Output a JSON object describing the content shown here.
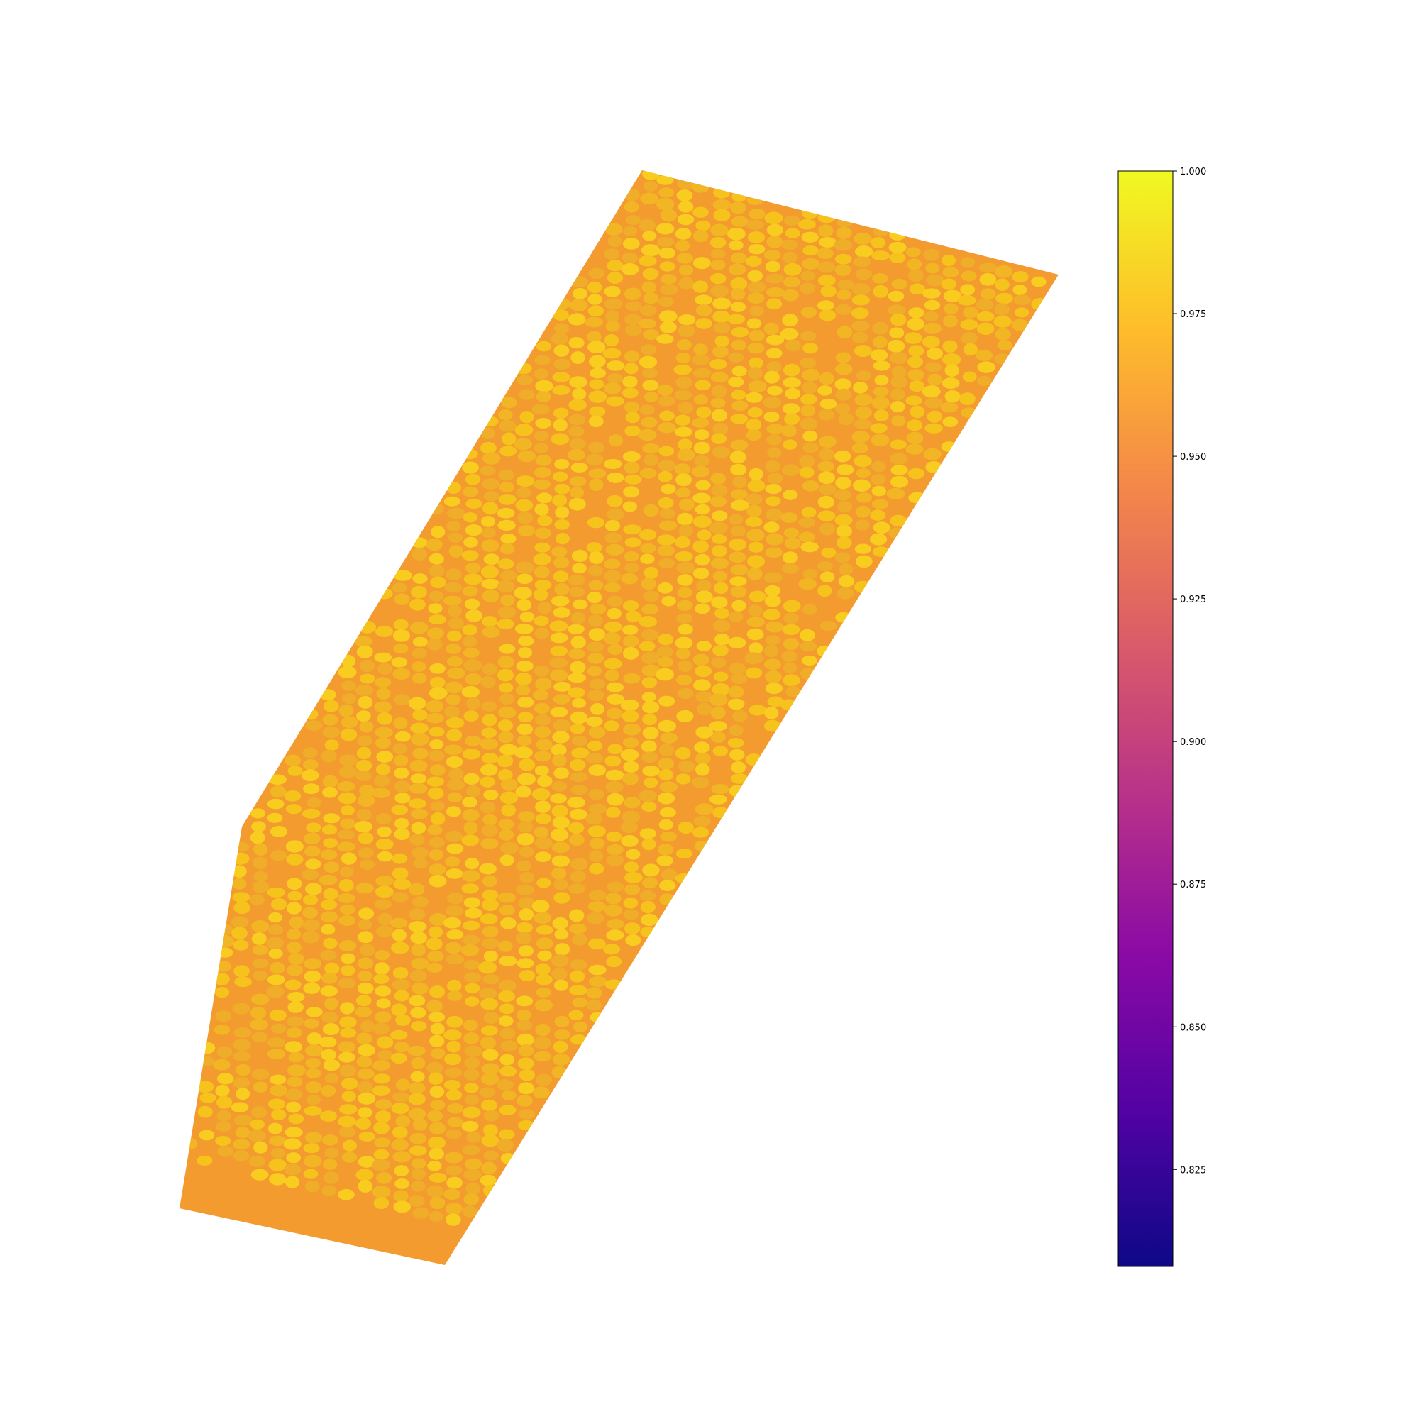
{
  "chart_data": {
    "type": "heatmap",
    "colormap": "plasma",
    "colormap_stops": [
      "#0d0887",
      "#5302a3",
      "#8b0aa5",
      "#b83289",
      "#db5c68",
      "#f48849",
      "#febd2a",
      "#f0f921"
    ],
    "background_color": "#f39b2e",
    "crown_colors": [
      "#f6c21c",
      "#f2b624",
      "#f8cd1f",
      "#efad29"
    ],
    "legend_placement": "right",
    "colorbar": {
      "vmin": 0.808,
      "vmax": 1.0,
      "ticks": [
        0.825,
        0.85,
        0.875,
        0.9,
        0.925,
        0.95,
        0.975,
        1.0
      ],
      "tick_labels": [
        "0.825",
        "0.850",
        "0.875",
        "0.900",
        "0.925",
        "0.950",
        "0.975",
        "1.000"
      ]
    },
    "field_value_typical": 0.955,
    "crown_value_typical": 0.975,
    "grid": false,
    "axes_visible": false
  }
}
